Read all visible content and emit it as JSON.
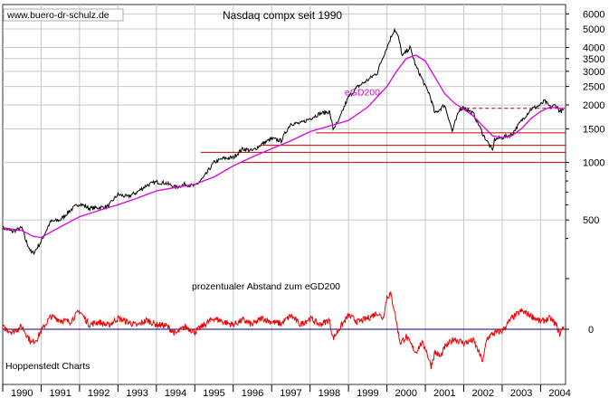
{
  "header": {
    "watermark": "www.buero-dr-schulz.de",
    "title": "Nasdaq compx seit 1990"
  },
  "lower_panel": {
    "label": "prozentualer Abstand zum eGD200",
    "source": "Hoppenstedt Charts"
  },
  "colors": {
    "price": "#000000",
    "ema": "#e000e0",
    "oscillator": "#ee0000",
    "support_lines": "#cc0000",
    "zero_line": "#000080",
    "grid": "#c8c8c8",
    "resistance_dashed": "#b00000"
  },
  "chart_data": [
    {
      "type": "line",
      "title": "Nasdaq compx seit 1990",
      "y_scale": "log",
      "ylim": [
        300,
        6500
      ],
      "xlim": [
        1990.0,
        2004.65
      ],
      "y_ticks": [
        {
          "value": 6000,
          "label": "6000"
        },
        {
          "value": 5000,
          "label": "5000"
        },
        {
          "value": 4000,
          "label": "4000"
        },
        {
          "value": 3500,
          "label": "3500"
        },
        {
          "value": 3000,
          "label": "3000"
        },
        {
          "value": 2500,
          "label": "2500"
        },
        {
          "value": 2000,
          "label": "2000"
        },
        {
          "value": 1500,
          "label": "1500"
        },
        {
          "value": 1000,
          "label": "1000"
        },
        {
          "value": 500,
          "label": "500"
        }
      ],
      "x_ticks": [
        "1990",
        "1991",
        "1992",
        "1993",
        "1994",
        "1995",
        "1996",
        "1997",
        "1998",
        "1999",
        "2000",
        "2001",
        "2002",
        "2003",
        "2004"
      ],
      "grid": true,
      "series": [
        {
          "name": "",
          "role": "index",
          "x": [
            1990.0,
            1990.25,
            1990.5,
            1990.6,
            1990.75,
            1990.83,
            1991.0,
            1991.25,
            1991.5,
            1991.75,
            1992.0,
            1992.25,
            1992.5,
            1992.75,
            1993.0,
            1993.25,
            1993.5,
            1993.75,
            1994.0,
            1994.25,
            1994.5,
            1994.75,
            1995.0,
            1995.25,
            1995.5,
            1995.75,
            1996.0,
            1996.25,
            1996.5,
            1996.75,
            1997.0,
            1997.25,
            1997.5,
            1997.75,
            1998.0,
            1998.25,
            1998.5,
            1998.6,
            1998.75,
            1999.0,
            1999.25,
            1999.5,
            1999.75,
            2000.0,
            2000.2,
            2000.3,
            2000.4,
            2000.5,
            2000.6,
            2000.75,
            2001.0,
            2001.1,
            2001.25,
            2001.5,
            2001.7,
            2001.9,
            2002.0,
            2002.25,
            2002.5,
            2002.75,
            2002.8,
            2003.0,
            2003.25,
            2003.5,
            2003.75,
            2004.0,
            2004.1,
            2004.25,
            2004.4,
            2004.5,
            2004.6
          ],
          "values": [
            455,
            435,
            455,
            390,
            335,
            340,
            385,
            490,
            500,
            560,
            610,
            575,
            580,
            590,
            680,
            660,
            700,
            760,
            790,
            780,
            740,
            770,
            750,
            840,
            1000,
            1050,
            1060,
            1180,
            1150,
            1250,
            1330,
            1300,
            1600,
            1600,
            1700,
            1800,
            1850,
            1500,
            1650,
            2200,
            2500,
            2700,
            2950,
            4000,
            5000,
            4500,
            3600,
            3800,
            4000,
            3200,
            2500,
            2300,
            1800,
            2000,
            1450,
            1900,
            1950,
            1800,
            1400,
            1150,
            1320,
            1350,
            1400,
            1650,
            1900,
            2000,
            2100,
            1950,
            2000,
            1850,
            1880
          ]
        },
        {
          "name": "eGD200",
          "role": "ema",
          "x": [
            1990.0,
            1990.5,
            1990.8,
            1991.0,
            1991.5,
            1992.0,
            1992.5,
            1993.0,
            1993.5,
            1994.0,
            1994.5,
            1995.0,
            1995.5,
            1996.0,
            1996.5,
            1997.0,
            1997.5,
            1998.0,
            1998.5,
            1999.0,
            1999.5,
            2000.0,
            2000.25,
            2000.5,
            2000.75,
            2001.0,
            2001.25,
            2001.5,
            2001.75,
            2002.0,
            2002.25,
            2002.5,
            2002.75,
            2003.0,
            2003.25,
            2003.5,
            2003.75,
            2004.0,
            2004.25,
            2004.5,
            2004.6
          ],
          "values": [
            455,
            440,
            410,
            405,
            460,
            520,
            560,
            600,
            650,
            710,
            740,
            770,
            840,
            960,
            1070,
            1180,
            1300,
            1450,
            1550,
            1660,
            1950,
            2500,
            3000,
            3500,
            3650,
            3400,
            2800,
            2300,
            2050,
            1900,
            1750,
            1550,
            1380,
            1350,
            1380,
            1500,
            1700,
            1850,
            1950,
            1920,
            1910
          ]
        }
      ],
      "reference_lines": [
        {
          "type": "dashed",
          "value": 1920,
          "x_range": [
            2001.9,
            2004.65
          ]
        },
        {
          "type": "solid",
          "value": 1430,
          "x_range": [
            1998.15,
            2004.65
          ]
        },
        {
          "type": "solid",
          "value": 1230,
          "x_range": [
            1996.7,
            2004.65
          ]
        },
        {
          "type": "solid",
          "value": 1130,
          "x_range": [
            1995.15,
            2004.65
          ]
        },
        {
          "type": "solid",
          "value": 1000,
          "x_range": [
            1996.2,
            2004.65
          ]
        }
      ],
      "annotations": [
        {
          "text": "eGD200",
          "x": 1998.9,
          "y": 2250
        }
      ]
    },
    {
      "type": "line",
      "title": "prozentualer Abstand zum eGD200",
      "ylim": [
        -55,
        55
      ],
      "y_ticks": [
        {
          "value": 0,
          "label": "0"
        }
      ],
      "zero_line": true,
      "series": [
        {
          "name": "",
          "role": "percent-distance",
          "x": [
            1990.0,
            1990.25,
            1990.5,
            1990.75,
            1990.9,
            1991.0,
            1991.25,
            1991.5,
            1991.75,
            1992.0,
            1992.25,
            1992.5,
            1992.75,
            1993.0,
            1993.25,
            1993.5,
            1993.75,
            1994.0,
            1994.25,
            1994.5,
            1994.75,
            1995.0,
            1995.25,
            1995.5,
            1995.75,
            1996.0,
            1996.25,
            1996.5,
            1996.75,
            1997.0,
            1997.25,
            1997.5,
            1997.75,
            1998.0,
            1998.25,
            1998.5,
            1998.6,
            1998.75,
            1999.0,
            1999.25,
            1999.5,
            1999.75,
            1999.9,
            2000.0,
            2000.1,
            2000.2,
            2000.3,
            2000.35,
            2000.5,
            2000.75,
            2000.9,
            2001.0,
            2001.15,
            2001.25,
            2001.4,
            2001.5,
            2001.75,
            2002.0,
            2002.25,
            2002.5,
            2002.6,
            2002.75,
            2003.0,
            2003.25,
            2003.5,
            2003.75,
            2004.0,
            2004.25,
            2004.4,
            2004.5,
            2004.6
          ],
          "values": [
            2,
            -3,
            3,
            -15,
            -10,
            -2,
            14,
            10,
            8,
            20,
            5,
            8,
            4,
            12,
            8,
            4,
            10,
            5,
            4,
            -5,
            3,
            -3,
            5,
            12,
            8,
            5,
            10,
            5,
            12,
            8,
            6,
            15,
            5,
            12,
            5,
            10,
            -10,
            0,
            15,
            8,
            12,
            18,
            12,
            35,
            38,
            20,
            -5,
            -15,
            -8,
            -25,
            -15,
            -20,
            -40,
            -25,
            -30,
            -20,
            -10,
            -15,
            -12,
            -35,
            -10,
            -5,
            -2,
            12,
            20,
            15,
            8,
            12,
            5,
            -5,
            3
          ]
        }
      ]
    }
  ]
}
